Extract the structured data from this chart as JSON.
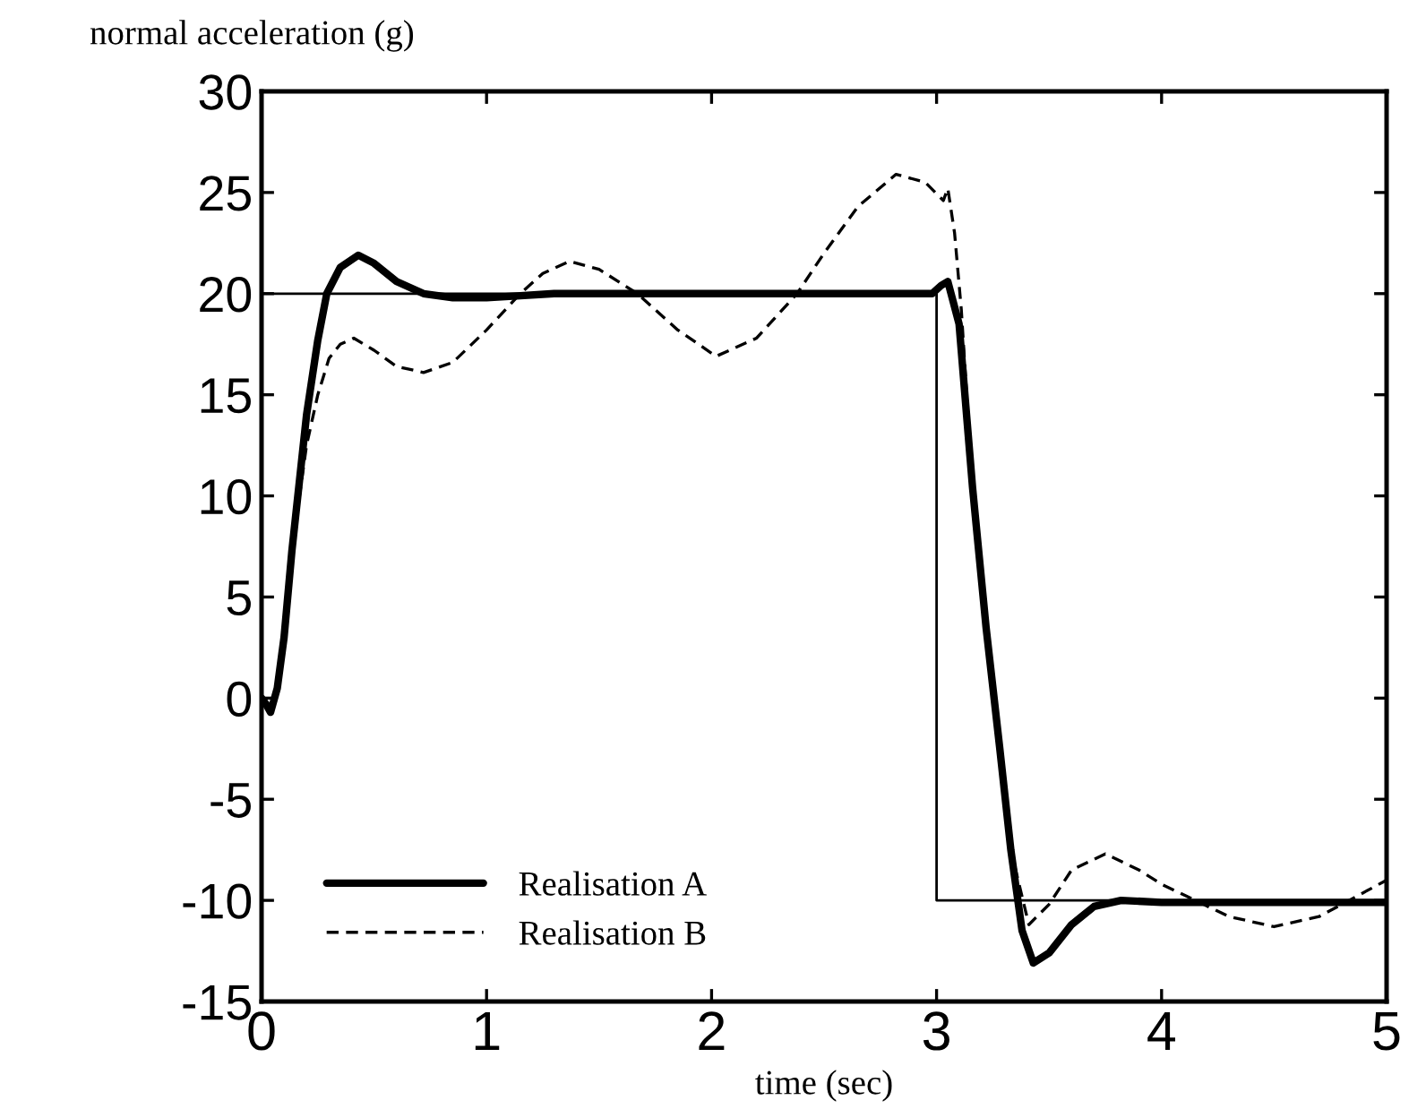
{
  "chart_data": {
    "type": "line",
    "xlabel": "time (sec)",
    "ylabel": "normal acceleration (g)",
    "xlim": [
      0,
      5
    ],
    "ylim": [
      -15,
      30
    ],
    "xticks": [
      0,
      1,
      2,
      3,
      4,
      5
    ],
    "yticks": [
      -15,
      -10,
      -5,
      0,
      5,
      10,
      15,
      20,
      25,
      30
    ],
    "grid": false,
    "legend": "bottom left",
    "marker": "none",
    "series": [
      {
        "color": "#000000",
        "line_style": "solid",
        "x": [
          0,
          3,
          3,
          5
        ],
        "values": [
          20,
          20,
          -10,
          -10
        ]
      },
      {
        "name": "Realisation A",
        "color": "#000000",
        "line_style": "solid",
        "x": [
          0,
          0.02,
          0.04,
          0.07,
          0.1,
          0.135,
          0.2,
          0.25,
          0.29,
          0.35,
          0.43,
          0.5,
          0.6,
          0.72,
          0.85,
          1.0,
          1.15,
          1.3,
          1.5,
          2.0,
          2.5,
          2.98,
          3.02,
          3.05,
          3.1,
          3.16,
          3.22,
          3.28,
          3.33,
          3.38,
          3.43,
          3.5,
          3.6,
          3.7,
          3.82,
          4.0,
          4.5,
          5.0
        ],
        "values": [
          0,
          -0.3,
          -0.7,
          0.5,
          3,
          7.3,
          14,
          17.7,
          20,
          21.3,
          21.9,
          21.5,
          20.6,
          20,
          19.8,
          19.8,
          19.9,
          20,
          20,
          20,
          20,
          20,
          20.4,
          20.6,
          18.5,
          10.4,
          3.5,
          -2.4,
          -7.5,
          -11.5,
          -13.1,
          -12.6,
          -11.2,
          -10.3,
          -10,
          -10.1,
          -10.1,
          -10.1
        ]
      },
      {
        "name": "Realisation B",
        "color": "#000000",
        "line_style": "dashed",
        "x": [
          0,
          0.02,
          0.04,
          0.07,
          0.1,
          0.135,
          0.2,
          0.25,
          0.3,
          0.35,
          0.41,
          0.5,
          0.6,
          0.72,
          0.85,
          1.0,
          1.15,
          1.25,
          1.37,
          1.5,
          1.67,
          1.85,
          2.02,
          2.2,
          2.38,
          2.5,
          2.65,
          2.82,
          2.95,
          3.03,
          3.05,
          3.08,
          3.11,
          3.16,
          3.22,
          3.28,
          3.33,
          3.41,
          3.5,
          3.6,
          3.75,
          3.9,
          4.0,
          4.15,
          4.3,
          4.5,
          4.7,
          4.85,
          5.0
        ],
        "values": [
          0,
          -0.3,
          -0.7,
          0.5,
          3,
          7.3,
          12.5,
          15,
          16.8,
          17.5,
          17.8,
          17.2,
          16.4,
          16.1,
          16.6,
          18.2,
          20,
          21,
          21.6,
          21.2,
          20,
          18.2,
          16.9,
          17.8,
          20,
          22,
          24.3,
          25.9,
          25.5,
          24.6,
          25.2,
          23,
          19.2,
          10.4,
          3.5,
          -2.4,
          -7.5,
          -11.2,
          -10.2,
          -8.5,
          -7.7,
          -8.5,
          -9.2,
          -10,
          -10.8,
          -11.3,
          -10.8,
          -9.9,
          -9.0
        ]
      }
    ]
  }
}
